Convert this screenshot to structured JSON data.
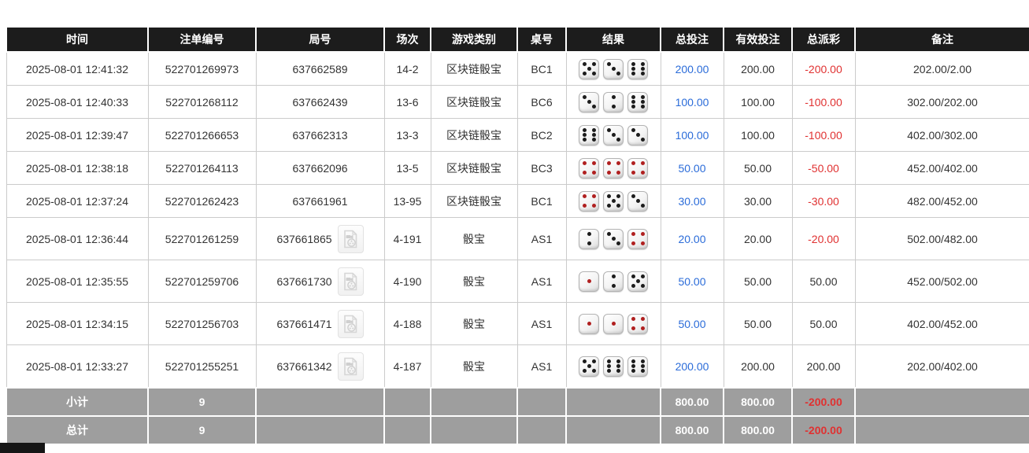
{
  "colors": {
    "header_bg": "#1c1c1c",
    "summary_bg": "#9e9e9e",
    "accent_blue": "#2b6cd9",
    "negative_red": "#e03131",
    "border": "#cbcbcb",
    "red_pip": "#b02020",
    "black_pip": "#1c1c1c"
  },
  "icons": {
    "video_replay": "video-replay-icon",
    "dice": "die-icon"
  },
  "table": {
    "columns": [
      {
        "key": "time",
        "label": "时间"
      },
      {
        "key": "bet_id",
        "label": "注单编号"
      },
      {
        "key": "round_id",
        "label": "局号"
      },
      {
        "key": "session",
        "label": "场次"
      },
      {
        "key": "game",
        "label": "游戏类别"
      },
      {
        "key": "table_no",
        "label": "桌号"
      },
      {
        "key": "result",
        "label": "结果"
      },
      {
        "key": "total_bet",
        "label": "总投注"
      },
      {
        "key": "valid_bet",
        "label": "有效投注"
      },
      {
        "key": "payout",
        "label": "总派彩"
      },
      {
        "key": "remark",
        "label": "备注"
      }
    ],
    "rows": [
      {
        "time": "2025-08-01 12:41:32",
        "bet_id": "522701269973",
        "round_id": "637662589",
        "has_video": false,
        "session": "14-2",
        "game": "区块链骰宝",
        "table_no": "BC1",
        "result_dice": [
          5,
          3,
          6
        ],
        "total_bet": "200.00",
        "valid_bet": "200.00",
        "payout": "-200.00",
        "remark": "202.00/2.00"
      },
      {
        "time": "2025-08-01 12:40:33",
        "bet_id": "522701268112",
        "round_id": "637662439",
        "has_video": false,
        "session": "13-6",
        "game": "区块链骰宝",
        "table_no": "BC6",
        "result_dice": [
          3,
          2,
          6
        ],
        "total_bet": "100.00",
        "valid_bet": "100.00",
        "payout": "-100.00",
        "remark": "302.00/202.00"
      },
      {
        "time": "2025-08-01 12:39:47",
        "bet_id": "522701266653",
        "round_id": "637662313",
        "has_video": false,
        "session": "13-3",
        "game": "区块链骰宝",
        "table_no": "BC2",
        "result_dice": [
          6,
          3,
          3
        ],
        "total_bet": "100.00",
        "valid_bet": "100.00",
        "payout": "-100.00",
        "remark": "402.00/302.00"
      },
      {
        "time": "2025-08-01 12:38:18",
        "bet_id": "522701264113",
        "round_id": "637662096",
        "has_video": false,
        "session": "13-5",
        "game": "区块链骰宝",
        "table_no": "BC3",
        "result_dice": [
          4,
          4,
          4
        ],
        "total_bet": "50.00",
        "valid_bet": "50.00",
        "payout": "-50.00",
        "remark": "452.00/402.00"
      },
      {
        "time": "2025-08-01 12:37:24",
        "bet_id": "522701262423",
        "round_id": "637661961",
        "has_video": false,
        "session": "13-95",
        "game": "区块链骰宝",
        "table_no": "BC1",
        "result_dice": [
          4,
          5,
          3
        ],
        "total_bet": "30.00",
        "valid_bet": "30.00",
        "payout": "-30.00",
        "remark": "482.00/452.00"
      },
      {
        "time": "2025-08-01 12:36:44",
        "bet_id": "522701261259",
        "round_id": "637661865",
        "has_video": true,
        "session": "4-191",
        "game": "骰宝",
        "table_no": "AS1",
        "result_dice": [
          2,
          3,
          4
        ],
        "total_bet": "20.00",
        "valid_bet": "20.00",
        "payout": "-20.00",
        "remark": "502.00/482.00"
      },
      {
        "time": "2025-08-01 12:35:55",
        "bet_id": "522701259706",
        "round_id": "637661730",
        "has_video": true,
        "session": "4-190",
        "game": "骰宝",
        "table_no": "AS1",
        "result_dice": [
          1,
          2,
          5
        ],
        "total_bet": "50.00",
        "valid_bet": "50.00",
        "payout": "50.00",
        "remark": "452.00/502.00"
      },
      {
        "time": "2025-08-01 12:34:15",
        "bet_id": "522701256703",
        "round_id": "637661471",
        "has_video": true,
        "session": "4-188",
        "game": "骰宝",
        "table_no": "AS1",
        "result_dice": [
          1,
          1,
          4
        ],
        "total_bet": "50.00",
        "valid_bet": "50.00",
        "payout": "50.00",
        "remark": "402.00/452.00"
      },
      {
        "time": "2025-08-01 12:33:27",
        "bet_id": "522701255251",
        "round_id": "637661342",
        "has_video": true,
        "session": "4-187",
        "game": "骰宝",
        "table_no": "AS1",
        "result_dice": [
          5,
          6,
          6
        ],
        "total_bet": "200.00",
        "valid_bet": "200.00",
        "payout": "200.00",
        "remark": "202.00/402.00"
      }
    ],
    "subtotal": {
      "label": "小计",
      "count": "9",
      "total_bet": "800.00",
      "valid_bet": "800.00",
      "payout": "-200.00"
    },
    "total": {
      "label": "总计",
      "count": "9",
      "total_bet": "800.00",
      "valid_bet": "800.00",
      "payout": "-200.00"
    }
  }
}
